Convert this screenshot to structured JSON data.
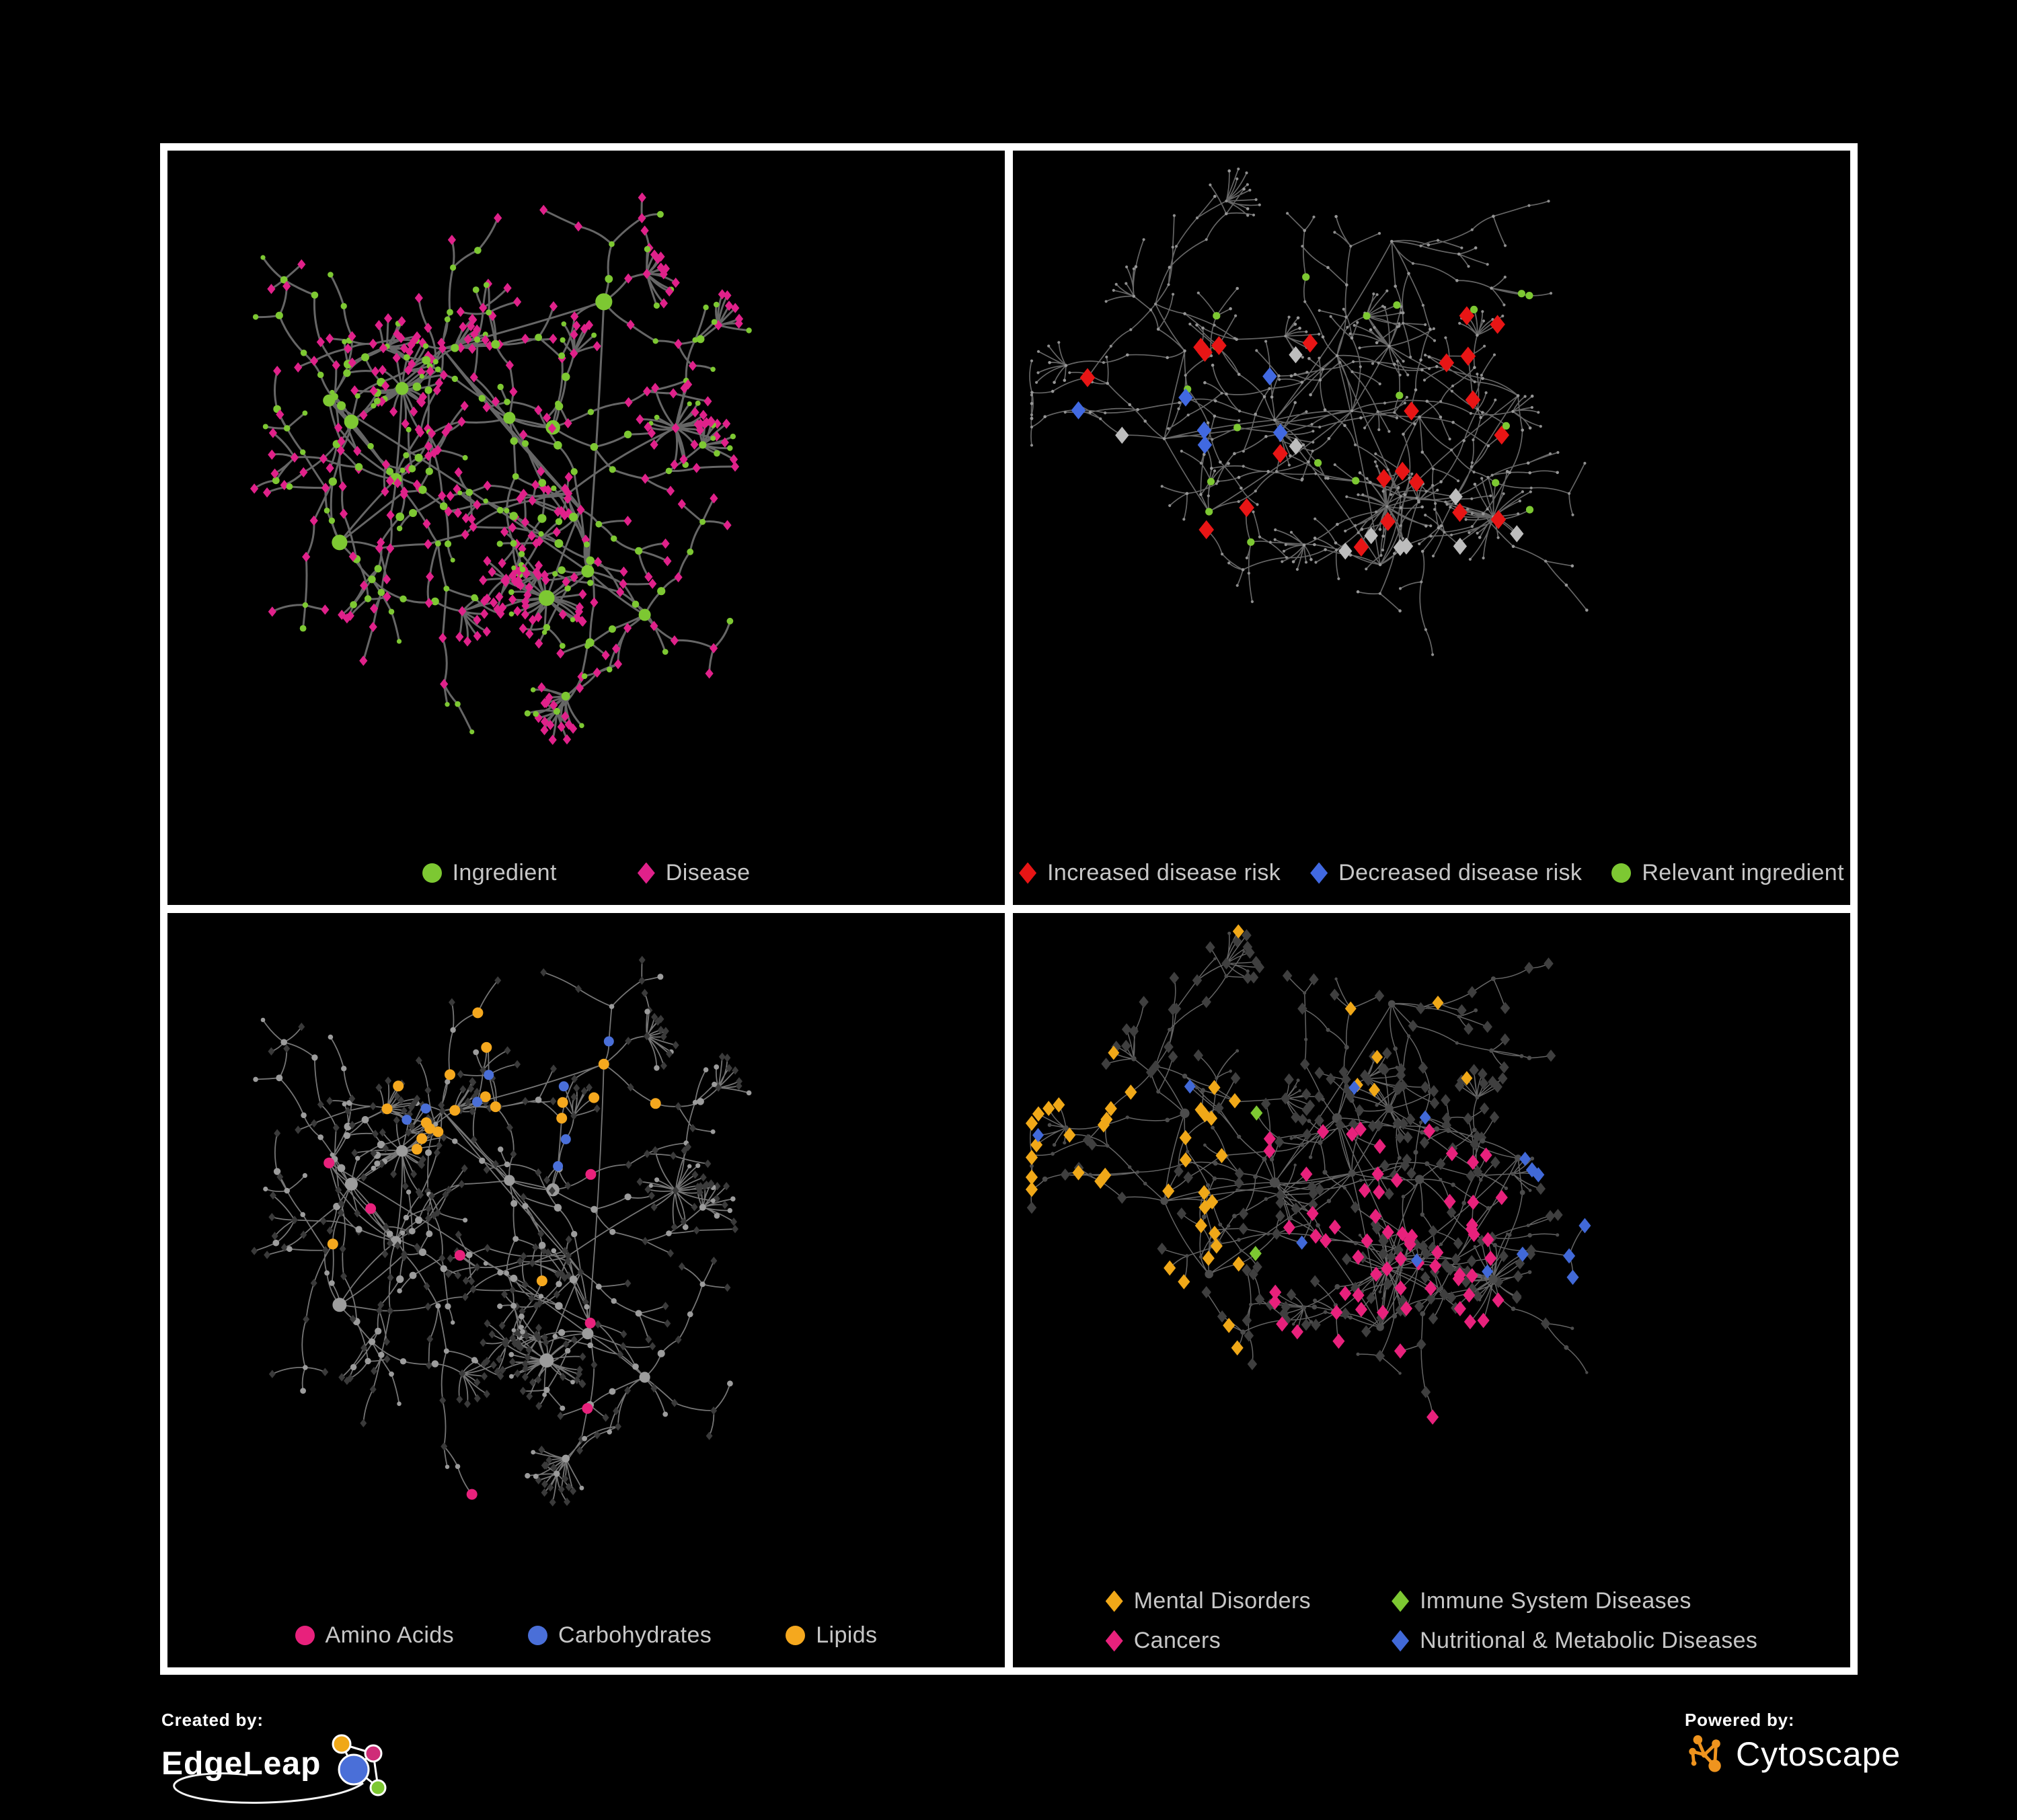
{
  "canvas": {
    "background": "#000000",
    "frame_color": "#ffffff"
  },
  "layout_seeds": {
    "A": 1337,
    "B": 4242
  },
  "panels": [
    {
      "name": "ingredients-diseases-network",
      "legend": [
        {
          "label": "Ingredient",
          "shape": "circle",
          "color": "#7dc832"
        },
        {
          "label": "Disease",
          "shape": "diamond",
          "color": "#e0218a"
        }
      ],
      "graph": {
        "layout": "A",
        "style_seed": 11,
        "edge": {
          "color": "#666666",
          "width": 3,
          "opacity": 1
        },
        "base_circle": {
          "color": "#7dc832",
          "scale": 1
        },
        "base_diamond": {
          "color": "#e0218a",
          "size": 5.4
        },
        "rules": []
      }
    },
    {
      "name": "disease-risk-network",
      "legend": [
        {
          "label": "Increased disease risk",
          "shape": "diamond",
          "color": "#e81515"
        },
        {
          "label": "Decreased disease risk",
          "shape": "diamond",
          "color": "#4169e1"
        },
        {
          "label": "Relevant ingredient",
          "shape": "circle",
          "color": "#7dc832"
        }
      ],
      "graph": {
        "layout": "B",
        "style_seed": 22,
        "edge": {
          "color": "#6a6a6a",
          "width": 1.7,
          "opacity": 0.95
        },
        "base_circle": {
          "color": "#979797",
          "size": 2.3,
          "shape": "circle"
        },
        "base_diamond": {
          "color": "#8f8f8f",
          "size": 2.1,
          "shape": "circle"
        },
        "rules": [
          {
            "node": "diamond",
            "region": [
              0.05,
              0.22,
              0.7,
              0.72
            ],
            "p": 0.085,
            "color": "#e81515",
            "size": 10,
            "shape": "diamond"
          },
          {
            "node": "diamond",
            "region": [
              0.05,
              0.28,
              0.32,
              0.62
            ],
            "p": 0.09,
            "color": "#4169e1",
            "size": 9.5,
            "shape": "diamond"
          },
          {
            "node": "diamond",
            "region": [
              0.78,
              0.14,
              0.98,
              0.3
            ],
            "p": 0.14,
            "color": "#4169e1",
            "size": 9.5,
            "shape": "diamond"
          },
          {
            "node": "diamond",
            "region": [
              0.05,
              0.25,
              0.62,
              0.68
            ],
            "p": 0.03,
            "color": "#bdbdbd",
            "size": 9,
            "shape": "diamond"
          },
          {
            "node": "diamond",
            "region": [
              0.68,
              0.7,
              0.95,
              0.95
            ],
            "p": 0.12,
            "color": "#e81515",
            "size": 10,
            "shape": "diamond"
          },
          {
            "node": "circle",
            "region": [
              0.06,
              0.18,
              0.62,
              0.72
            ],
            "p": 0.12,
            "color": "#7dc832",
            "size": 5.6,
            "shape": "circle"
          }
        ]
      }
    },
    {
      "name": "nutrient-classes-network",
      "legend": [
        {
          "label": "Amino Acids",
          "shape": "circle",
          "color": "#e8217c"
        },
        {
          "label": "Carbohydrates",
          "shape": "circle",
          "color": "#4a6fd8"
        },
        {
          "label": "Lipids",
          "shape": "circle",
          "color": "#f5a81e"
        }
      ],
      "graph": {
        "layout": "A",
        "style_seed": 33,
        "edge": {
          "color": "#8a8a8a",
          "width": 1.8,
          "opacity": 0.85
        },
        "base_circle": {
          "color": "#9c9c9c",
          "scale": 0.9
        },
        "base_diamond": {
          "color": "#3a3a3a",
          "size": 4.4
        },
        "rules": [
          {
            "node": "circle",
            "region": [
              0.26,
              0.04,
              0.58,
              0.4
            ],
            "p": 0.5,
            "color": "#f5a81e",
            "size": 8,
            "shape": "circle"
          },
          {
            "node": "circle",
            "region": [
              0.26,
              0.04,
              0.58,
              0.4
            ],
            "p": 0.3,
            "color": "#4a6fd8",
            "size": 7.5,
            "shape": "circle"
          },
          {
            "node": "circle",
            "region": [
              0,
              0.25,
              1,
              1
            ],
            "p": 0.05,
            "color": "#f5a81e",
            "size": 8,
            "shape": "circle"
          },
          {
            "node": "circle",
            "region": [
              0,
              0.3,
              1,
              1
            ],
            "p": 0.06,
            "color": "#e8217c",
            "size": 8,
            "shape": "circle"
          },
          {
            "node": "circle",
            "region": [
              0,
              0,
              0.14,
              0.55
            ],
            "p": 0.08,
            "color": "#4a6fd8",
            "size": 7.5,
            "shape": "circle"
          }
        ]
      }
    },
    {
      "name": "disease-categories-network",
      "legend": [
        {
          "label": "Mental Disorders",
          "shape": "diamond",
          "color": "#f0a818"
        },
        {
          "label": "Immune System Diseases",
          "shape": "diamond",
          "color": "#7dc832"
        },
        {
          "label": "Cancers",
          "shape": "diamond",
          "color": "#e8217c"
        },
        {
          "label": "Nutritional & Metabolic Diseases",
          "shape": "diamond",
          "color": "#4169d8"
        }
      ],
      "graph": {
        "layout": "B",
        "style_seed": 44,
        "edge": {
          "color": "#7d7d7d",
          "width": 1.5,
          "opacity": 0.8
        },
        "base_circle": {
          "color": "#4c4c4c",
          "scale": 0.6
        },
        "base_diamond": {
          "color": "#3f3f3f",
          "size": 6.4
        },
        "rules": [
          {
            "node": "diamond",
            "region": [
              0.02,
              0.25,
              0.27,
              0.75
            ],
            "p": 0.7,
            "color": "#f0a818",
            "size": 8,
            "shape": "diamond"
          },
          {
            "node": "diamond",
            "region": [
              0.3,
              0.32,
              0.6,
              0.78
            ],
            "p": 0.4,
            "color": "#e8217c",
            "size": 8,
            "shape": "diamond"
          },
          {
            "node": "diamond",
            "region": [
              0.6,
              0.05,
              1,
              0.95
            ],
            "p": 0.3,
            "color": "#4169d8",
            "size": 8,
            "shape": "diamond"
          },
          {
            "node": "diamond",
            "region": [
              0,
              0,
              0.55,
              0.28
            ],
            "p": 0.08,
            "color": "#f0a818",
            "size": 7.5,
            "shape": "diamond"
          },
          {
            "node": "diamond",
            "region": [
              0,
              0,
              1,
              1
            ],
            "p": 0.05,
            "color": "#4169d8",
            "size": 7.5,
            "shape": "diamond"
          },
          {
            "node": "diamond",
            "region": [
              0.2,
              0.2,
              0.8,
              0.8
            ],
            "p": 0.015,
            "color": "#7dc832",
            "size": 8,
            "shape": "diamond"
          }
        ]
      }
    }
  ],
  "footer": {
    "created_by": {
      "label": "Created by:",
      "brand": "EdgeLeap"
    },
    "powered_by": {
      "label": "Powered by:",
      "brand": "Cytoscape"
    },
    "edgeleap_colors": {
      "orange": "#f0a818",
      "pink": "#cf2d78",
      "blue": "#4a6fd8",
      "green": "#7dc832"
    },
    "cytoscape_color": "#ef941e"
  }
}
